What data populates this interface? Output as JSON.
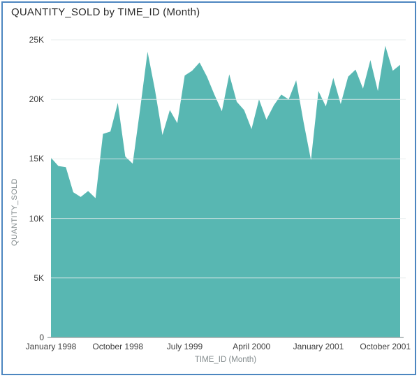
{
  "card": {
    "title": "QUANTITY_SOLD by TIME_ID (Month)"
  },
  "colors": {
    "series_fill": "#58b7b2",
    "frame_border": "#4d86c0",
    "gridline": "#e3eaea",
    "axis_line": "#9fa8aa",
    "tick_text": "#404040",
    "axis_title_text": "#828a8c",
    "title_text": "#2b2b2b",
    "background": "#ffffff"
  },
  "chart_data": {
    "type": "area",
    "title": "QUANTITY_SOLD by TIME_ID (Month)",
    "xlabel": "TIME_ID (Month)",
    "ylabel": "QUANTITY_SOLD",
    "x": [
      "Jan 1998",
      "Feb 1998",
      "Mar 1998",
      "Apr 1998",
      "May 1998",
      "Jun 1998",
      "Jul 1998",
      "Aug 1998",
      "Sep 1998",
      "Oct 1998",
      "Nov 1998",
      "Dec 1998",
      "Jan 1999",
      "Feb 1999",
      "Mar 1999",
      "Apr 1999",
      "May 1999",
      "Jun 1999",
      "Jul 1999",
      "Aug 1999",
      "Sep 1999",
      "Oct 1999",
      "Nov 1999",
      "Dec 1999",
      "Jan 2000",
      "Feb 2000",
      "Mar 2000",
      "Apr 2000",
      "May 2000",
      "Jun 2000",
      "Jul 2000",
      "Aug 2000",
      "Sep 2000",
      "Oct 2000",
      "Nov 2000",
      "Dec 2000",
      "Jan 2001",
      "Feb 2001",
      "Mar 2001",
      "Apr 2001",
      "May 2001",
      "Jun 2001",
      "Jul 2001",
      "Aug 2001",
      "Sep 2001",
      "Oct 2001",
      "Nov 2001",
      "Dec 2001"
    ],
    "values": [
      15100,
      14400,
      14300,
      12200,
      11800,
      12300,
      11700,
      17100,
      17300,
      19700,
      15200,
      14600,
      19200,
      24000,
      20800,
      17000,
      19100,
      18000,
      22000,
      22400,
      23100,
      21900,
      20400,
      19000,
      22100,
      19800,
      19100,
      17500,
      20000,
      18300,
      19500,
      20400,
      20000,
      21600,
      18100,
      14900,
      20700,
      19400,
      21800,
      19600,
      21900,
      22500,
      20900,
      23300,
      20700,
      24500,
      22400,
      22900
    ],
    "x_axis_ticks": [
      {
        "label": "January 1998",
        "month_index": 0
      },
      {
        "label": "October 1998",
        "month_index": 9
      },
      {
        "label": "July 1999",
        "month_index": 18
      },
      {
        "label": "April 2000",
        "month_index": 27
      },
      {
        "label": "January 2001",
        "month_index": 36
      },
      {
        "label": "October 2001",
        "month_index": 45
      }
    ],
    "y_axis_ticks": [
      {
        "label": "0",
        "value": 0
      },
      {
        "label": "5K",
        "value": 5000
      },
      {
        "label": "10K",
        "value": 10000
      },
      {
        "label": "15K",
        "value": 15000
      },
      {
        "label": "20K",
        "value": 20000
      },
      {
        "label": "25K",
        "value": 25000
      }
    ],
    "ylim": [
      0,
      25000
    ],
    "grid": "horizontal-only",
    "legend": "none"
  }
}
